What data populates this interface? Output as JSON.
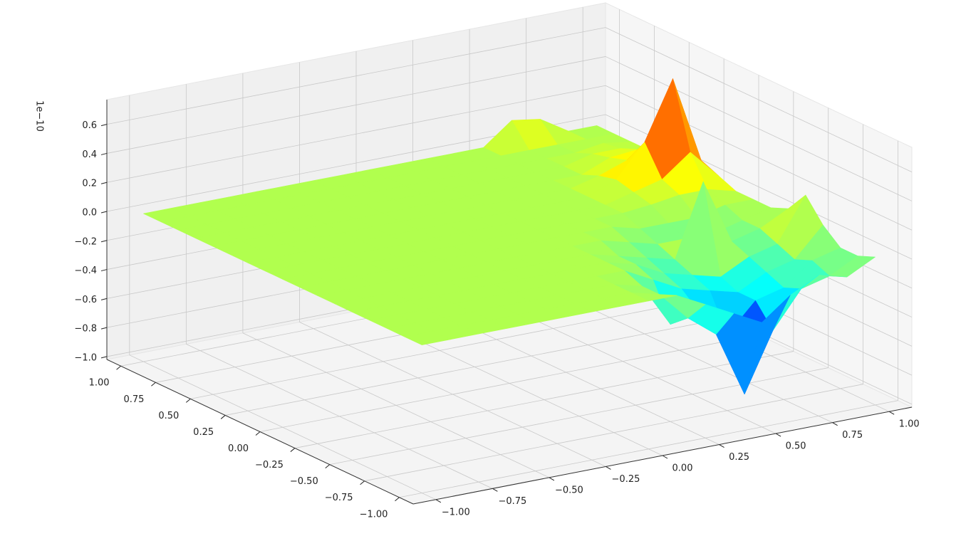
{
  "chart_data": {
    "type": "surface",
    "colormap": "jet",
    "grid": true,
    "z_offset_label": "1e−10",
    "x": [
      -1,
      -0.875,
      -0.75,
      -0.625,
      -0.5,
      -0.375,
      -0.25,
      -0.125,
      0,
      0.125,
      0.25,
      0.375,
      0.5,
      0.625,
      0.75,
      0.875,
      1
    ],
    "y": [
      -1,
      -0.875,
      -0.75,
      -0.625,
      -0.5,
      -0.375,
      -0.25,
      -0.125,
      0,
      0.125,
      0.25,
      0.375,
      0.5,
      0.625,
      0.75,
      0.875,
      1
    ],
    "z": [
      [
        0,
        0,
        0,
        0,
        0,
        0,
        0,
        0,
        0,
        0,
        -0.1,
        -0.2,
        -0.3,
        -0.15,
        -0.05,
        -0.1,
        0
      ],
      [
        0,
        0,
        0,
        0,
        0,
        0,
        0,
        0,
        0,
        -0.05,
        -0.25,
        -0.4,
        -0.85,
        -0.45,
        -0.2,
        -0.15,
        -0.05
      ],
      [
        0,
        0,
        0,
        0,
        0,
        0,
        0,
        0,
        0,
        -0.05,
        -0.35,
        -0.3,
        -0.5,
        -0.3,
        -0.25,
        -0.1,
        -0.05
      ],
      [
        0,
        0,
        0,
        0,
        0,
        0,
        0,
        0,
        0,
        0,
        -0.1,
        -0.2,
        -0.25,
        -0.3,
        -0.2,
        -0.15,
        0.05
      ],
      [
        0,
        0,
        0,
        0,
        0,
        0,
        0,
        0,
        0,
        0,
        -0.05,
        -0.15,
        -0.2,
        -0.25,
        -0.15,
        -0.1,
        0.2
      ],
      [
        0,
        0,
        0,
        0,
        0,
        0,
        0,
        0,
        0,
        0,
        -0.05,
        -0.1,
        -0.15,
        0.35,
        -0.1,
        -0.05,
        0.05
      ],
      [
        0,
        0,
        0,
        0,
        0,
        0,
        0,
        0,
        0,
        0,
        0,
        -0.05,
        -0.1,
        -0.1,
        -0.1,
        -0.05,
        0
      ],
      [
        0,
        0,
        0,
        0,
        0,
        0,
        0,
        0,
        0,
        0,
        0,
        0,
        -0.05,
        -0.05,
        -0.05,
        0,
        0
      ],
      [
        0,
        0,
        0,
        0,
        0,
        0,
        0,
        0,
        0,
        0,
        0,
        0,
        0,
        0.02,
        0.05,
        0.05,
        0
      ],
      [
        0,
        0,
        0,
        0,
        0,
        0,
        0,
        0,
        0,
        0,
        0,
        0,
        0,
        0.05,
        0.1,
        0.25,
        0.05
      ],
      [
        0,
        0,
        0,
        0,
        0,
        0,
        0,
        0,
        0,
        0,
        0,
        0,
        0,
        0.08,
        0.3,
        0.7,
        0.1
      ],
      [
        0,
        0,
        0,
        0,
        0,
        0,
        0,
        0,
        0,
        0,
        0,
        0,
        0,
        0.05,
        0.12,
        0.2,
        0.08
      ],
      [
        0,
        0,
        0,
        0,
        0,
        0,
        0,
        0,
        0,
        0,
        0,
        0,
        0,
        0,
        0.08,
        0.1,
        0.05
      ],
      [
        0,
        0,
        0,
        0,
        0,
        0,
        0,
        0,
        0,
        0,
        0,
        0,
        0,
        0,
        0.05,
        0.05,
        0
      ],
      [
        0,
        0,
        0,
        0,
        0,
        0,
        0,
        0,
        0,
        0,
        0,
        0,
        0,
        0,
        0,
        0.03,
        0
      ],
      [
        0,
        0,
        0,
        0,
        0,
        0,
        0,
        0,
        0,
        0,
        0,
        0,
        0,
        0,
        0,
        0,
        0
      ],
      [
        0,
        0,
        0,
        0,
        0,
        0,
        0,
        0,
        0,
        0,
        0,
        0,
        0,
        0.15,
        0.12,
        0,
        0
      ]
    ],
    "xlim": [
      -1.1,
      1.1
    ],
    "ylim": [
      -1.1,
      1.1
    ],
    "zlim": [
      -1.02,
      0.77
    ],
    "xticks": [
      {
        "value": -1,
        "label": "−1.00"
      },
      {
        "value": -0.75,
        "label": "−0.75"
      },
      {
        "value": -0.5,
        "label": "−0.50"
      },
      {
        "value": -0.25,
        "label": "−0.25"
      },
      {
        "value": 0,
        "label": "0.00"
      },
      {
        "value": 0.25,
        "label": "0.25"
      },
      {
        "value": 0.5,
        "label": "0.50"
      },
      {
        "value": 0.75,
        "label": "0.75"
      },
      {
        "value": 1,
        "label": "1.00"
      }
    ],
    "yticks": [
      {
        "value": -1,
        "label": "−1.00"
      },
      {
        "value": -0.75,
        "label": "−0.75"
      },
      {
        "value": -0.5,
        "label": "−0.50"
      },
      {
        "value": -0.25,
        "label": "−0.25"
      },
      {
        "value": 0,
        "label": "0.00"
      },
      {
        "value": 0.25,
        "label": "0.25"
      },
      {
        "value": 0.5,
        "label": "0.50"
      },
      {
        "value": 0.75,
        "label": "0.75"
      },
      {
        "value": 1,
        "label": "1.00"
      }
    ],
    "zticks": [
      {
        "value": -1,
        "label": "−1.0"
      },
      {
        "value": -0.8,
        "label": "−0.8"
      },
      {
        "value": -0.6,
        "label": "−0.6"
      },
      {
        "value": -0.4,
        "label": "−0.4"
      },
      {
        "value": -0.2,
        "label": "−0.2"
      },
      {
        "value": 0,
        "label": "0.0"
      },
      0.2,
      0.4,
      0.6
    ]
  }
}
